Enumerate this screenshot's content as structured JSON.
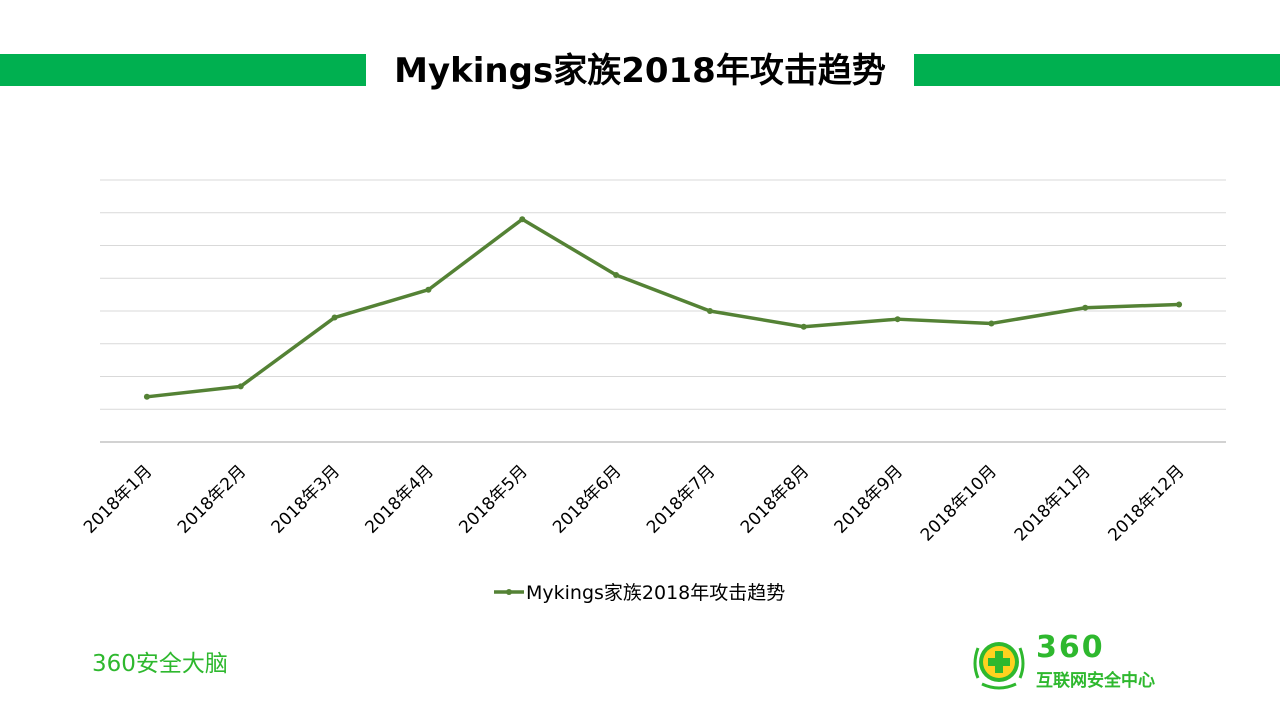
{
  "slide": {
    "title": "Mykings家族2018年攻击趋势",
    "footer_left": "360安全大脑",
    "logo_number": "360",
    "logo_text": "互联网安全中心"
  },
  "colors": {
    "accent_bar": "#00b050",
    "series_line": "#548235",
    "footer_text": "#2eb82e",
    "grid": "#d9d9d9"
  },
  "chart_data": {
    "type": "line",
    "title": "",
    "xlabel": "",
    "ylabel": "",
    "categories": [
      "2018年1月",
      "2018年2月",
      "2018年3月",
      "2018年4月",
      "2018年5月",
      "2018年6月",
      "2018年7月",
      "2018年8月",
      "2018年9月",
      "2018年10月",
      "2018年11月",
      "2018年12月"
    ],
    "series": [
      {
        "name": "Mykings家族2018年攻击趋势",
        "values": [
          1.38,
          1.7,
          3.8,
          4.65,
          6.8,
          5.1,
          4.0,
          3.52,
          3.75,
          3.62,
          4.1,
          4.2
        ]
      }
    ],
    "ylim": [
      0,
      8
    ],
    "y_tick_labels_shown": false,
    "grid": true,
    "legend_position": "bottom"
  }
}
